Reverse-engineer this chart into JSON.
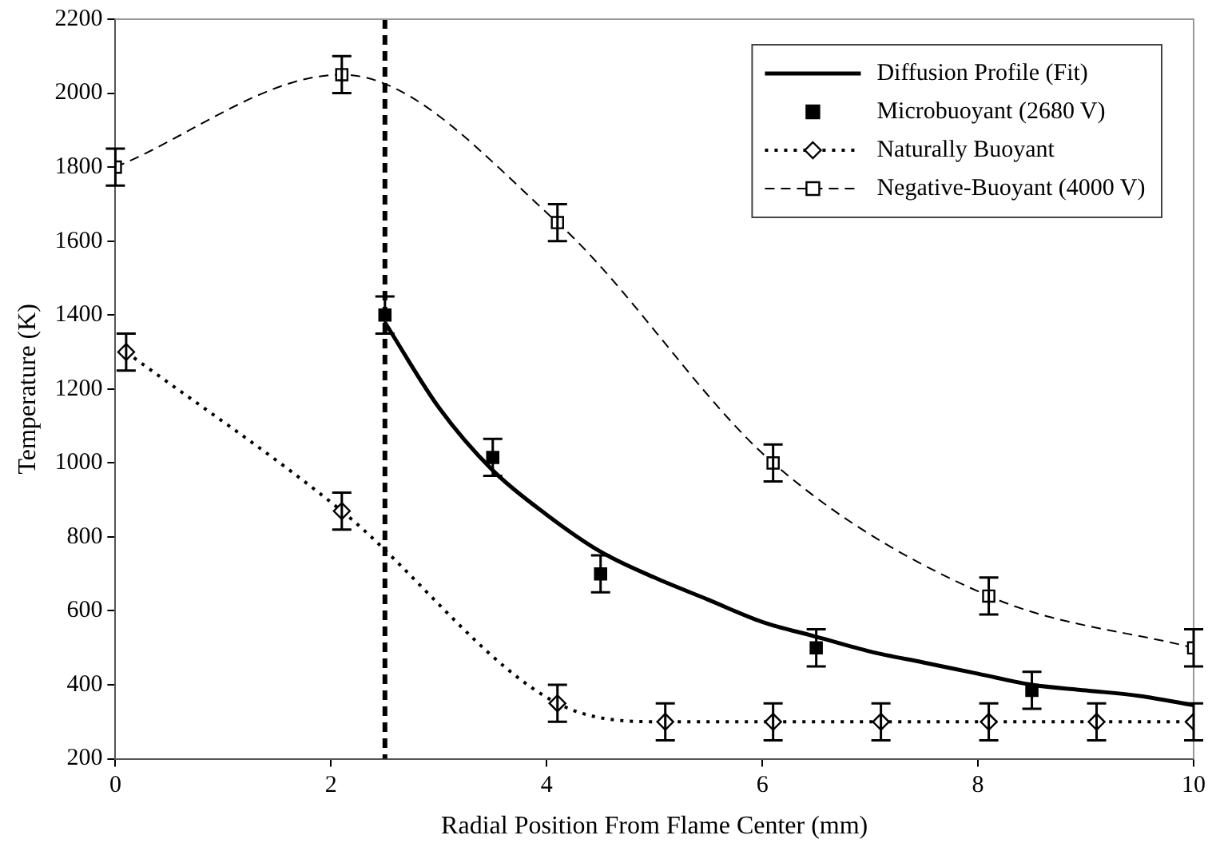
{
  "chart_data": {
    "type": "scatter",
    "xlabel": "Radial Position From Flame Center (mm)",
    "ylabel": "Temperature (K)",
    "xlim": [
      0,
      10
    ],
    "xticks": [
      0,
      2,
      4,
      6,
      8,
      10
    ],
    "ylim": [
      200,
      2200
    ],
    "yticks": [
      200,
      400,
      600,
      800,
      1000,
      1200,
      1400,
      1600,
      1800,
      2000,
      2200
    ],
    "grid": false,
    "legend": "top right",
    "ref_lines": [
      {
        "axis": "x",
        "value": 2.5,
        "color": "#000000",
        "line_style": "dashed"
      }
    ],
    "series": [
      {
        "name": "Diffusion Profile (Fit)",
        "type": "line",
        "color": "#000000",
        "marker": "none",
        "line_style": "solid",
        "x": [
          2.5,
          3,
          3.5,
          4,
          4.5,
          5,
          5.5,
          6,
          6.5,
          7,
          7.5,
          8,
          8.5,
          9,
          9.5,
          10
        ],
        "values": [
          1380,
          1150,
          980,
          860,
          760,
          690,
          630,
          570,
          530,
          490,
          460,
          430,
          400,
          385,
          370,
          345
        ]
      },
      {
        "name": "Microbuoyant (2680 V)",
        "type": "scatter",
        "color": "#000000",
        "marker": "square",
        "x": [
          2.5,
          3.5,
          4.5,
          6.5,
          8.5
        ],
        "values": [
          1400,
          1015,
          700,
          500,
          385
        ],
        "errors": [
          50,
          50,
          50,
          50,
          50
        ]
      },
      {
        "name": "Naturally Buoyant",
        "type": "line",
        "color": "#000000",
        "marker": "diamond",
        "line_style": "dotted",
        "x": [
          0.1,
          2.1,
          4.1,
          5.1,
          6.1,
          7.1,
          8.1,
          9.1,
          10
        ],
        "values": [
          1300,
          870,
          350,
          300,
          300,
          300,
          300,
          300,
          300
        ],
        "errors": [
          50,
          50,
          50,
          50,
          50,
          50,
          50,
          50,
          50
        ]
      },
      {
        "name": "Negative-Buoyant (4000 V)",
        "type": "line",
        "color": "#000000",
        "marker": "square",
        "line_style": "dashed",
        "x": [
          0,
          2.1,
          4.1,
          6.1,
          8.1,
          10
        ],
        "values": [
          1800,
          2050,
          1650,
          1000,
          640,
          500
        ],
        "errors": [
          50,
          50,
          50,
          50,
          50,
          50
        ]
      }
    ]
  }
}
